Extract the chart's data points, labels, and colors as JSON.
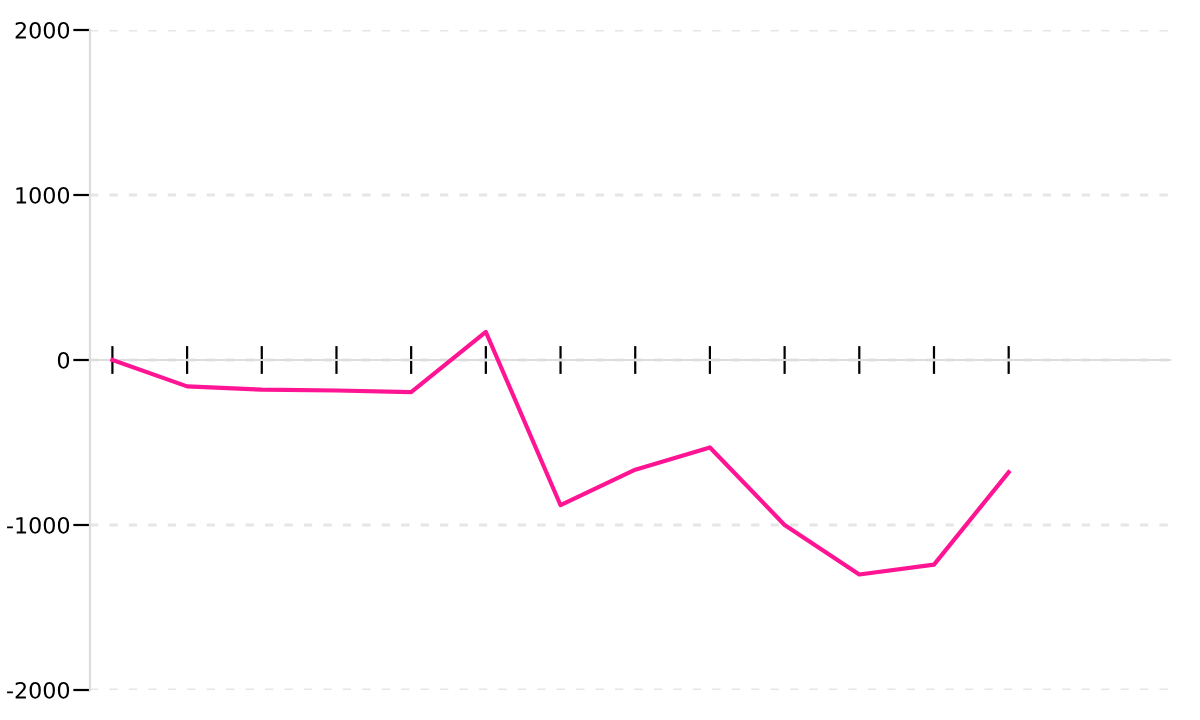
{
  "chart_data": {
    "type": "line",
    "categories": [
      null,
      null,
      null,
      null,
      null,
      null,
      null,
      null,
      null,
      null,
      null,
      null,
      null
    ],
    "series": [
      {
        "color": "#ff1493",
        "values": [
          0,
          -160,
          -180,
          -185,
          -195,
          170,
          -880,
          -665,
          -530,
          -1000,
          -1300,
          -1240,
          -680
        ]
      }
    ],
    "ylim": [
      -2000,
      2000
    ],
    "yticks": [
      -2000,
      -1000,
      0,
      1000,
      2000
    ],
    "grid": "y",
    "marker": "none",
    "line_style": "solid"
  }
}
